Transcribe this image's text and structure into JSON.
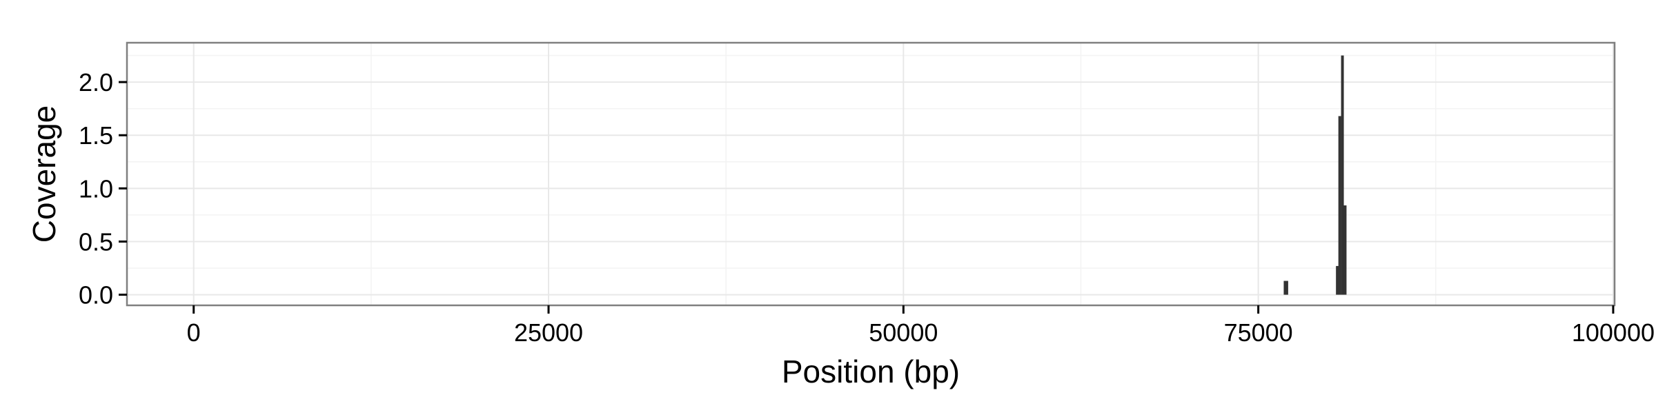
{
  "chart_data": {
    "type": "bar",
    "xlabel": "Position (bp)",
    "ylabel": "Coverage",
    "xlim": [
      -4700,
      100100
    ],
    "ylim": [
      -0.1,
      2.37
    ],
    "x_ticks": [
      0,
      25000,
      50000,
      75000,
      100000
    ],
    "x_tick_labels": [
      "0",
      "25000",
      "50000",
      "75000",
      "100000"
    ],
    "y_ticks": [
      0.0,
      0.5,
      1.0,
      1.5,
      2.0
    ],
    "y_tick_labels": [
      "0.0",
      "0.5",
      "1.0",
      "1.5",
      "2.0"
    ],
    "grid": true,
    "bar_width": 120,
    "bars": [
      {
        "x": 76850,
        "value": 0.13
      },
      {
        "x": 76970,
        "value": 0.13
      },
      {
        "x": 80530,
        "value": 0.27
      },
      {
        "x": 80700,
        "value": 1.68
      },
      {
        "x": 80890,
        "value": 2.25
      },
      {
        "x": 81080,
        "value": 0.84
      }
    ],
    "colors": {
      "bar": "#333333",
      "panel_border": "#7f7f7f",
      "grid_major": "#e8e8e8",
      "grid_minor": "#f3f3f3",
      "background": "#ffffff"
    }
  }
}
